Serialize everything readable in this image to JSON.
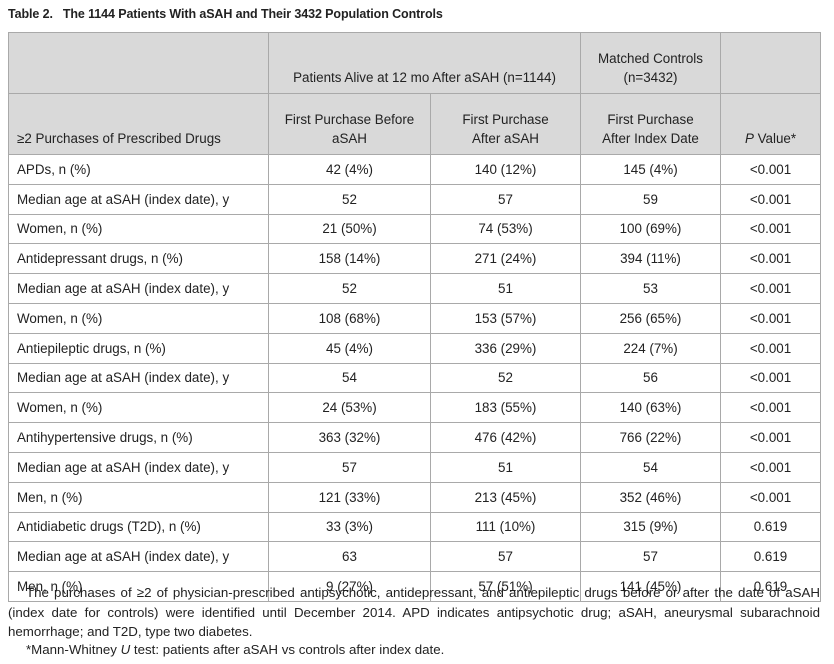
{
  "title": {
    "label": "Table 2.",
    "text": "The 1144 Patients With aSAH and Their 3432 Population Controls"
  },
  "header": {
    "group1": "Patients Alive at 12 mo After aSAH (n=1144)",
    "group2_line1": "Matched Controls",
    "group2_line2": "(n=3432)",
    "col1": "≥2 Purchases of Prescribed Drugs",
    "col2_line1": "First Purchase Before",
    "col2_line2": "aSAH",
    "col3_line1": "First Purchase",
    "col3_line2": "After aSAH",
    "col4_line1": "First Purchase",
    "col4_line2": "After Index Date",
    "col5_italic": "P",
    "col5_rest": " Value*"
  },
  "rows": [
    [
      "APDs, n (%)",
      "42 (4%)",
      "140 (12%)",
      "145 (4%)",
      "<0.001"
    ],
    [
      "Median age at aSAH (index date), y",
      "52",
      "57",
      "59",
      "<0.001"
    ],
    [
      "Women, n (%)",
      "21 (50%)",
      "74 (53%)",
      "100 (69%)",
      "<0.001"
    ],
    [
      "Antidepressant drugs, n (%)",
      "158 (14%)",
      "271 (24%)",
      "394 (11%)",
      "<0.001"
    ],
    [
      "Median age at aSAH (index date), y",
      "52",
      "51",
      "53",
      "<0.001"
    ],
    [
      "Women, n (%)",
      "108 (68%)",
      "153 (57%)",
      "256 (65%)",
      "<0.001"
    ],
    [
      "Antiepileptic drugs, n (%)",
      "45 (4%)",
      "336 (29%)",
      "224 (7%)",
      "<0.001"
    ],
    [
      "Median age at aSAH (index date), y",
      "54",
      "52",
      "56",
      "<0.001"
    ],
    [
      "Women, n (%)",
      "24 (53%)",
      "183 (55%)",
      "140 (63%)",
      "<0.001"
    ],
    [
      "Antihypertensive drugs, n (%)",
      "363 (32%)",
      "476 (42%)",
      "766 (22%)",
      "<0.001"
    ],
    [
      "Median age at aSAH (index date), y",
      "57",
      "51",
      "54",
      "<0.001"
    ],
    [
      "Men, n (%)",
      "121 (33%)",
      "213 (45%)",
      "352 (46%)",
      "<0.001"
    ],
    [
      "Antidiabetic drugs (T2D), n (%)",
      "33 (3%)",
      "111 (10%)",
      "315 (9%)",
      "0.619"
    ],
    [
      "Median age at aSAH (index date), y",
      "63",
      "57",
      "57",
      "0.619"
    ],
    [
      "Men, n (%)",
      "9 (27%)",
      "57 (51%)",
      "141 (45%)",
      "0.619"
    ]
  ],
  "footnote": "The purchases of ≥2 of physician-prescribed antipsychotic, antidepressant, and antiepileptic drugs before or after the date of aSAH (index date for controls) were identified until December 2014. APD indicates antipsychotic drug; aSAH, aneurysmal subarachnoid hemorrhage; and T2D, type two diabetes.",
  "footnote2": {
    "pre": "*Mann-Whitney ",
    "italic": "U",
    "post": " test: patients after aSAH vs controls after index date."
  }
}
